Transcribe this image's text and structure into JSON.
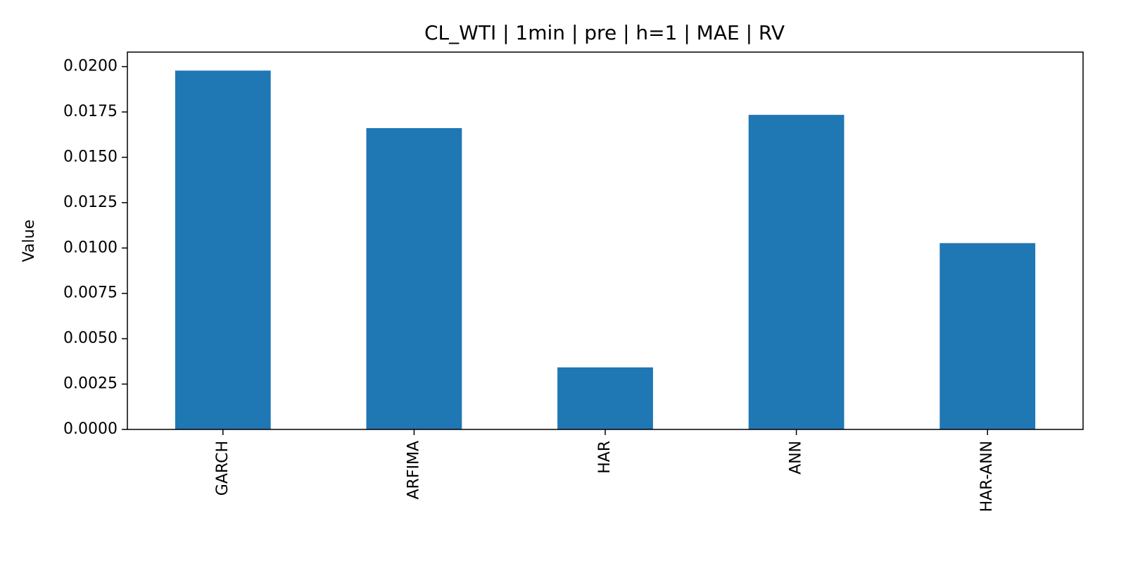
{
  "chart_data": {
    "type": "bar",
    "title": "CL_WTI | 1min | pre | h=1 | MAE | RV",
    "xlabel": "",
    "ylabel": "Value",
    "categories": [
      "GARCH",
      "ARFIMA",
      "HAR",
      "ANN",
      "HAR-ANN"
    ],
    "values": [
      0.01978,
      0.01661,
      0.00342,
      0.01734,
      0.01027
    ],
    "ylim": [
      0,
      0.0208
    ],
    "yticks": [
      0.0,
      0.0025,
      0.005,
      0.0075,
      0.01,
      0.0125,
      0.015,
      0.0175,
      0.02
    ],
    "ytick_labels": [
      "0.0000",
      "0.0025",
      "0.0050",
      "0.0075",
      "0.0100",
      "0.0125",
      "0.0150",
      "0.0175",
      "0.0200"
    ],
    "bar_color": "#1f77b4",
    "grid": false,
    "legend": "none"
  }
}
